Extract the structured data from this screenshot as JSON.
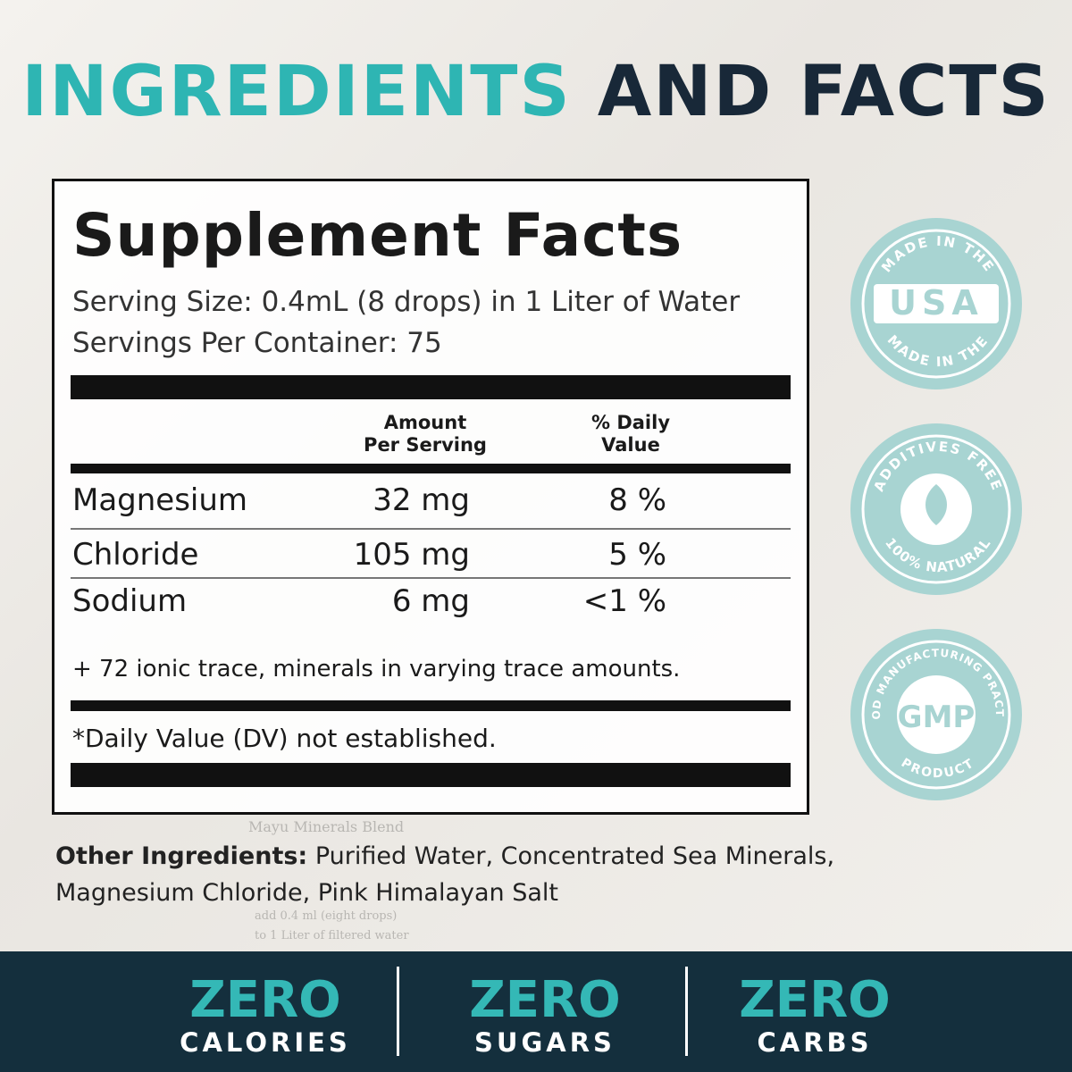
{
  "header": {
    "title_part1": "INGREDIENTS",
    "title_part2": "AND FACTS"
  },
  "facts": {
    "title": "Supplement Facts",
    "serving_size": "Serving Size:  0.4mL (8 drops) in 1 Liter of Water",
    "servings_per_container": "Servings Per Container: 75",
    "col_amount": [
      "Amount",
      "Per Serving"
    ],
    "col_dv": [
      "% Daily",
      "Value"
    ],
    "rows": [
      [
        "Magnesium",
        "32 mg",
        "8 %"
      ],
      [
        "Chloride",
        "105 mg",
        "5 %"
      ],
      [
        "Sodium",
        "6 mg",
        "<1 %"
      ]
    ],
    "trace_note": "+ 72 ionic trace, minerals in varying trace amounts.",
    "dv_note": "*Daily Value (DV) not established."
  },
  "background_text": [
    "Mayu Minerals Blend",
    "add 0.4 ml (eight drops)",
    "to 1 Liter of filtered water"
  ],
  "other_ingredients": {
    "label": "Other Ingredients:",
    "text": "Purified Water, Concentrated Sea Minerals, Magnesium Chloride, Pink Himalayan Salt"
  },
  "badges": {
    "usa": [
      "MADE IN THE",
      "USA",
      "MADE IN THE"
    ],
    "additives": [
      "ADDITIVES FREE",
      "100% NATURAL"
    ],
    "gmp": [
      "GOOD MANUFACTURING PRACTICE",
      "GMP",
      "PRODUCT"
    ]
  },
  "footer": [
    {
      "top": "ZERO",
      "bottom": "CALORIES"
    },
    {
      "top": "ZERO",
      "bottom": "SUGARS"
    },
    {
      "top": "ZERO",
      "bottom": "CARBS"
    }
  ]
}
